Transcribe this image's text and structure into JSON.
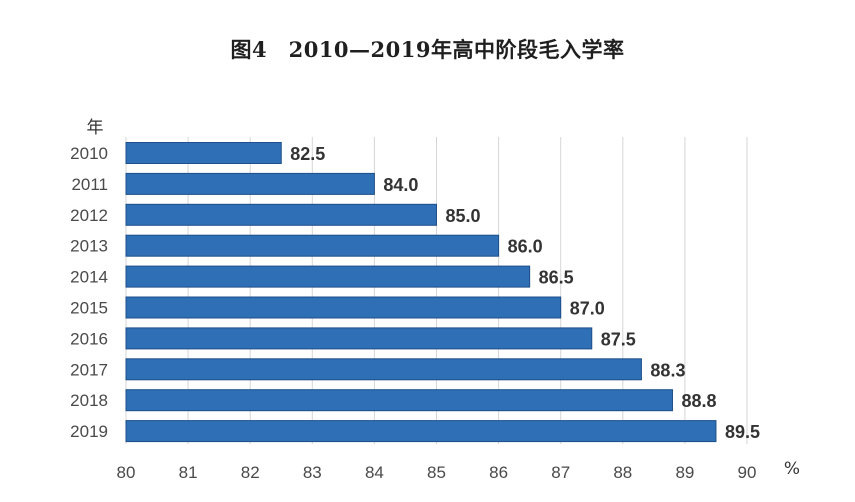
{
  "chart_data": {
    "type": "bar",
    "orientation": "horizontal",
    "title": "图4　2010—2019年高中阶段毛入学率",
    "ylabel": "年",
    "xlabel": "%",
    "categories": [
      "2010",
      "2011",
      "2012",
      "2013",
      "2014",
      "2015",
      "2016",
      "2017",
      "2018",
      "2019"
    ],
    "values": [
      82.5,
      84.0,
      85.0,
      86.0,
      86.5,
      87.0,
      87.5,
      88.3,
      88.8,
      89.5
    ],
    "value_labels": [
      "82.5",
      "84.0",
      "85.0",
      "86.0",
      "86.5",
      "87.0",
      "87.5",
      "88.3",
      "88.8",
      "89.5"
    ],
    "xlim": [
      80,
      90
    ],
    "xticks": [
      "80",
      "81",
      "82",
      "83",
      "84",
      "85",
      "86",
      "87",
      "88",
      "89",
      "90"
    ],
    "grid": "vertical",
    "bar_color": "#2f6fb5",
    "bar_edge_color": "#1e4f8a"
  }
}
